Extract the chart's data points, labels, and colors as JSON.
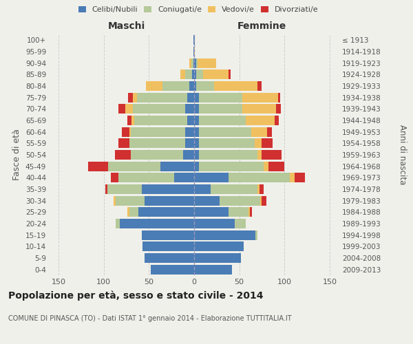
{
  "age_groups": [
    "0-4",
    "5-9",
    "10-14",
    "15-19",
    "20-24",
    "25-29",
    "30-34",
    "35-39",
    "40-44",
    "45-49",
    "50-54",
    "55-59",
    "60-64",
    "65-69",
    "70-74",
    "75-79",
    "80-84",
    "85-89",
    "90-94",
    "95-99",
    "100+"
  ],
  "birth_years": [
    "2009-2013",
    "2004-2008",
    "1999-2003",
    "1994-1998",
    "1989-1993",
    "1984-1988",
    "1979-1983",
    "1974-1978",
    "1969-1973",
    "1964-1968",
    "1959-1963",
    "1954-1958",
    "1949-1953",
    "1944-1948",
    "1939-1943",
    "1934-1938",
    "1929-1933",
    "1924-1928",
    "1919-1923",
    "1914-1918",
    "≤ 1913"
  ],
  "maschi": {
    "celibi": [
      48,
      55,
      57,
      58,
      82,
      62,
      55,
      58,
      22,
      37,
      12,
      10,
      10,
      8,
      10,
      8,
      5,
      2,
      1,
      1,
      1
    ],
    "coniugati": [
      0,
      0,
      0,
      0,
      5,
      10,
      32,
      38,
      62,
      58,
      58,
      62,
      60,
      58,
      58,
      55,
      30,
      8,
      2,
      0,
      0
    ],
    "vedovi": [
      0,
      0,
      0,
      0,
      0,
      2,
      2,
      0,
      0,
      0,
      0,
      0,
      2,
      3,
      8,
      5,
      18,
      5,
      2,
      0,
      0
    ],
    "divorziati": [
      0,
      0,
      0,
      0,
      0,
      0,
      0,
      2,
      8,
      22,
      18,
      12,
      8,
      5,
      8,
      5,
      0,
      0,
      0,
      0,
      0
    ]
  },
  "femmine": {
    "nubili": [
      42,
      52,
      55,
      68,
      45,
      38,
      28,
      18,
      38,
      5,
      5,
      5,
      5,
      5,
      5,
      5,
      2,
      2,
      2,
      0,
      1
    ],
    "coniugate": [
      0,
      0,
      0,
      2,
      12,
      22,
      45,
      52,
      68,
      72,
      65,
      62,
      58,
      52,
      48,
      48,
      20,
      8,
      2,
      0,
      0
    ],
    "vedove": [
      0,
      0,
      0,
      0,
      0,
      2,
      2,
      2,
      5,
      5,
      5,
      8,
      18,
      32,
      38,
      40,
      48,
      28,
      20,
      1,
      0
    ],
    "divorziate": [
      0,
      0,
      0,
      0,
      0,
      2,
      5,
      5,
      12,
      18,
      22,
      12,
      5,
      5,
      5,
      2,
      5,
      2,
      0,
      0,
      0
    ]
  },
  "colors": {
    "celibi_nubili": "#4a7cb5",
    "coniugati": "#b5c99a",
    "vedovi": "#f0c060",
    "divorziati": "#d03030"
  },
  "xlim": 160,
  "title": "Popolazione per età, sesso e stato civile - 2014",
  "subtitle": "COMUNE DI PINASCA (TO) - Dati ISTAT 1° gennaio 2014 - Elaborazione TUTTITALIA.IT",
  "xlabel_left": "Maschi",
  "xlabel_right": "Femmine",
  "ylabel": "Fasce di età",
  "ylabel_right": "Anni di nascita",
  "bg_color": "#f0f0eb",
  "grid_color": "#cccccc"
}
